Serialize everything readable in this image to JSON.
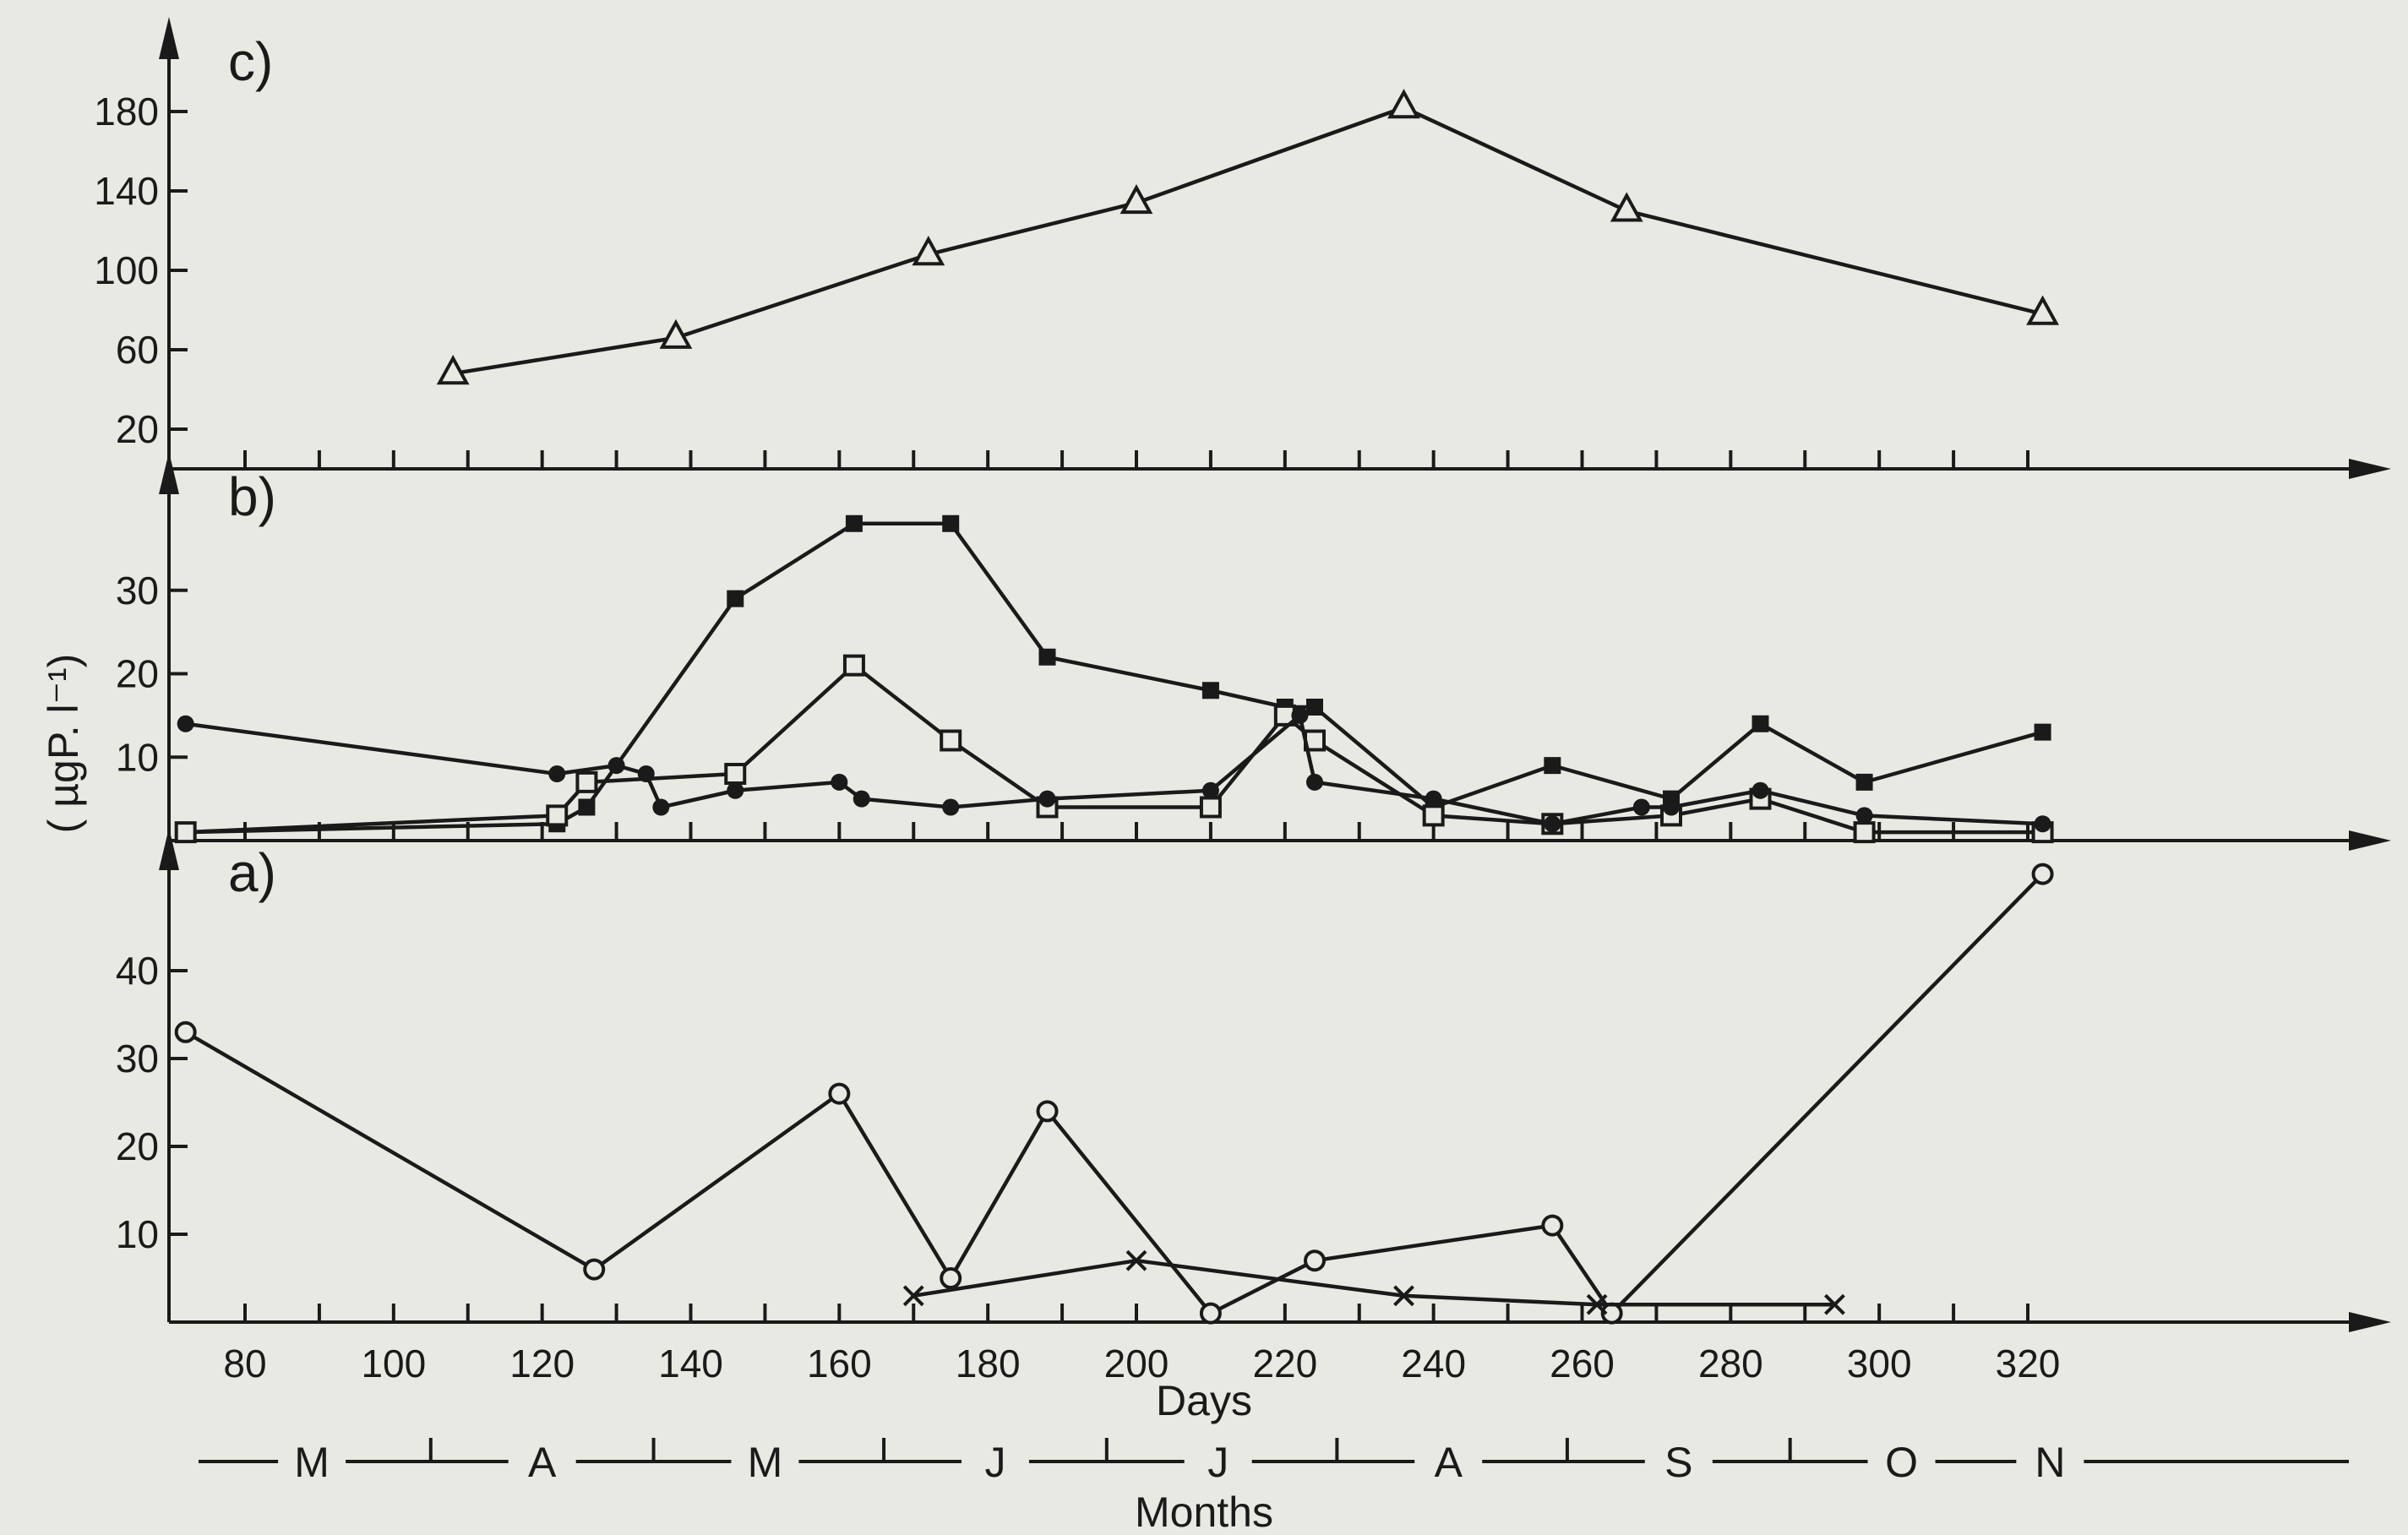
{
  "figure": {
    "ylabel": "( µgP. l⁻¹)",
    "xlabel": "Days",
    "months_label": "Months",
    "months": [
      "M",
      "A",
      "M",
      "J",
      "J",
      "A",
      "S",
      "O",
      "N"
    ],
    "xticks": [
      80,
      100,
      120,
      140,
      160,
      180,
      200,
      220,
      240,
      260,
      280,
      300,
      320
    ]
  },
  "chart_data": [
    {
      "type": "line",
      "panel": "c)",
      "xlim": [
        70,
        330
      ],
      "ylim": [
        0,
        200
      ],
      "yticks": [
        20,
        60,
        100,
        140,
        180
      ],
      "series": [
        {
          "marker": "triangle",
          "x": [
            108,
            138,
            172,
            200,
            236,
            266,
            322
          ],
          "y": [
            48,
            66,
            108,
            134,
            182,
            130,
            78
          ]
        }
      ]
    },
    {
      "type": "line",
      "panel": "b)",
      "xlim": [
        70,
        330
      ],
      "ylim": [
        0,
        40
      ],
      "yticks": [
        10,
        20,
        30
      ],
      "series": [
        {
          "marker": "filled-square",
          "x": [
            72,
            122,
            126,
            146,
            162,
            175,
            188,
            210,
            220,
            224,
            240,
            256,
            272,
            284,
            298,
            322
          ],
          "y": [
            1,
            2,
            4,
            29,
            38,
            38,
            22,
            18,
            16,
            16,
            4,
            9,
            5,
            14,
            7,
            13
          ]
        },
        {
          "marker": "open-square",
          "x": [
            72,
            122,
            126,
            146,
            162,
            175,
            188,
            210,
            220,
            224,
            240,
            256,
            272,
            284,
            298,
            322
          ],
          "y": [
            1,
            3,
            7,
            8,
            21,
            12,
            4,
            4,
            15,
            12,
            3,
            2,
            3,
            5,
            1,
            1
          ]
        },
        {
          "marker": "filled-circle",
          "x": [
            72,
            122,
            130,
            134,
            136,
            146,
            160,
            163,
            175,
            188,
            210,
            222,
            224,
            240,
            256,
            268,
            272,
            284,
            298,
            322
          ],
          "y": [
            14,
            8,
            9,
            8,
            4,
            6,
            7,
            5,
            4,
            5,
            6,
            15,
            7,
            5,
            2,
            4,
            4,
            6,
            3,
            2
          ]
        }
      ]
    },
    {
      "type": "line",
      "panel": "a)",
      "xlim": [
        70,
        330
      ],
      "ylim": [
        0,
        50
      ],
      "yticks": [
        10,
        20,
        30,
        40
      ],
      "series": [
        {
          "marker": "open-circle",
          "x": [
            72,
            127,
            160,
            175,
            188,
            210,
            224,
            256,
            264,
            322
          ],
          "y": [
            33,
            6,
            26,
            5,
            24,
            1,
            7,
            11,
            1,
            51
          ]
        },
        {
          "marker": "cross",
          "x": [
            170,
            200,
            236,
            262,
            294
          ],
          "y": [
            3,
            7,
            3,
            2,
            2
          ]
        }
      ]
    }
  ]
}
